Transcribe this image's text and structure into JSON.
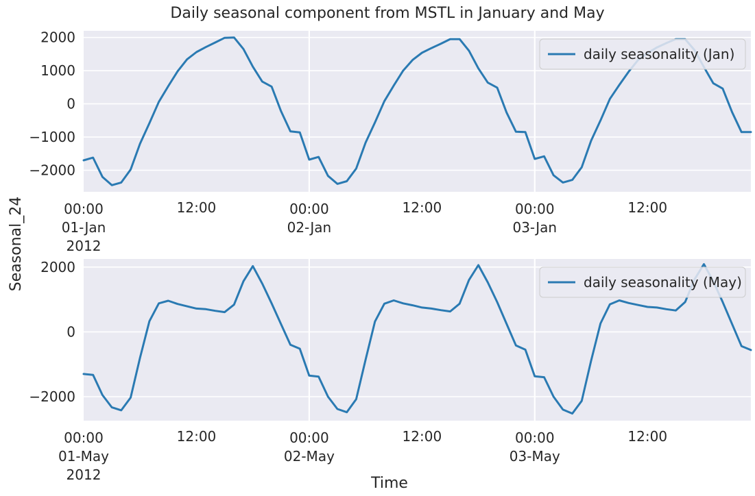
{
  "figure": {
    "title": "Daily seasonal component from MSTL in January and May",
    "ylabel": "Seasonal_24",
    "xlabel": "Time",
    "line_color": "#2a7ab2",
    "plot_background": "#eaeaf2"
  },
  "chart_data": [
    {
      "type": "line",
      "legend": "daily seasonality (Jan)",
      "legend_position": "top-right",
      "grid": true,
      "x_start": "2012-01-01 00:00",
      "x_step": "1h",
      "ylim": [
        -2650,
        2200
      ],
      "yticks": [
        -2000,
        -1000,
        0,
        1000,
        2000
      ],
      "ytick_labels": [
        "−2000",
        "−1000",
        "0",
        "1000",
        "2000"
      ],
      "xticks": [
        {
          "hour": 0,
          "lines": [
            "00:00",
            "01-Jan",
            "2012"
          ]
        },
        {
          "hour": 12,
          "lines": [
            "12:00"
          ]
        },
        {
          "hour": 24,
          "lines": [
            "00:00",
            "02-Jan"
          ]
        },
        {
          "hour": 36,
          "lines": [
            "12:00"
          ]
        },
        {
          "hour": 48,
          "lines": [
            "00:00",
            "03-Jan"
          ]
        },
        {
          "hour": 60,
          "lines": [
            "12:00"
          ]
        }
      ],
      "series": [
        {
          "name": "daily seasonality (Jan)",
          "values": [
            -1700,
            -1620,
            -2200,
            -2450,
            -2370,
            -1980,
            -1200,
            -580,
            60,
            530,
            980,
            1340,
            1560,
            1710,
            1850,
            1990,
            2000,
            1650,
            1120,
            670,
            520,
            -220,
            -830,
            -860,
            -1680,
            -1600,
            -2170,
            -2410,
            -2330,
            -1950,
            -1170,
            -560,
            80,
            550,
            1000,
            1320,
            1540,
            1680,
            1810,
            1950,
            1950,
            1600,
            1070,
            640,
            490,
            -260,
            -840,
            -850,
            -1660,
            -1580,
            -2150,
            -2370,
            -2290,
            -1910,
            -1110,
            -500,
            150,
            570,
            970,
            1320,
            1530,
            1700,
            1830,
            1950,
            1950,
            1620,
            1110,
            620,
            460,
            -250,
            -850,
            -850
          ]
        }
      ]
    },
    {
      "type": "line",
      "legend": "daily seasonality (May)",
      "legend_position": "top-right",
      "grid": true,
      "x_start": "2012-05-01 00:00",
      "x_step": "1h",
      "ylim": [
        -2740,
        2250
      ],
      "yticks": [
        -2000,
        0,
        2000
      ],
      "ytick_labels": [
        "−2000",
        "0",
        "2000"
      ],
      "xticks": [
        {
          "hour": 0,
          "lines": [
            "00:00",
            "01-May",
            "2012"
          ]
        },
        {
          "hour": 12,
          "lines": [
            "12:00"
          ]
        },
        {
          "hour": 24,
          "lines": [
            "00:00",
            "02-May"
          ]
        },
        {
          "hour": 36,
          "lines": [
            "12:00"
          ]
        },
        {
          "hour": 48,
          "lines": [
            "00:00",
            "03-May"
          ]
        },
        {
          "hour": 60,
          "lines": [
            "12:00"
          ]
        }
      ],
      "series": [
        {
          "name": "daily seasonality (May)",
          "values": [
            -1300,
            -1330,
            -1950,
            -2330,
            -2420,
            -2030,
            -800,
            330,
            880,
            960,
            860,
            790,
            720,
            700,
            650,
            610,
            840,
            1560,
            2030,
            1490,
            880,
            240,
            -400,
            -520,
            -1350,
            -1380,
            -2000,
            -2380,
            -2480,
            -2080,
            -860,
            320,
            870,
            970,
            880,
            820,
            750,
            720,
            670,
            630,
            870,
            1600,
            2060,
            1530,
            920,
            250,
            -420,
            -550,
            -1370,
            -1400,
            -2000,
            -2400,
            -2520,
            -2130,
            -890,
            260,
            850,
            970,
            890,
            830,
            770,
            750,
            700,
            660,
            920,
            1620,
            2090,
            1560,
            920,
            240,
            -440,
            -560
          ]
        }
      ]
    }
  ]
}
